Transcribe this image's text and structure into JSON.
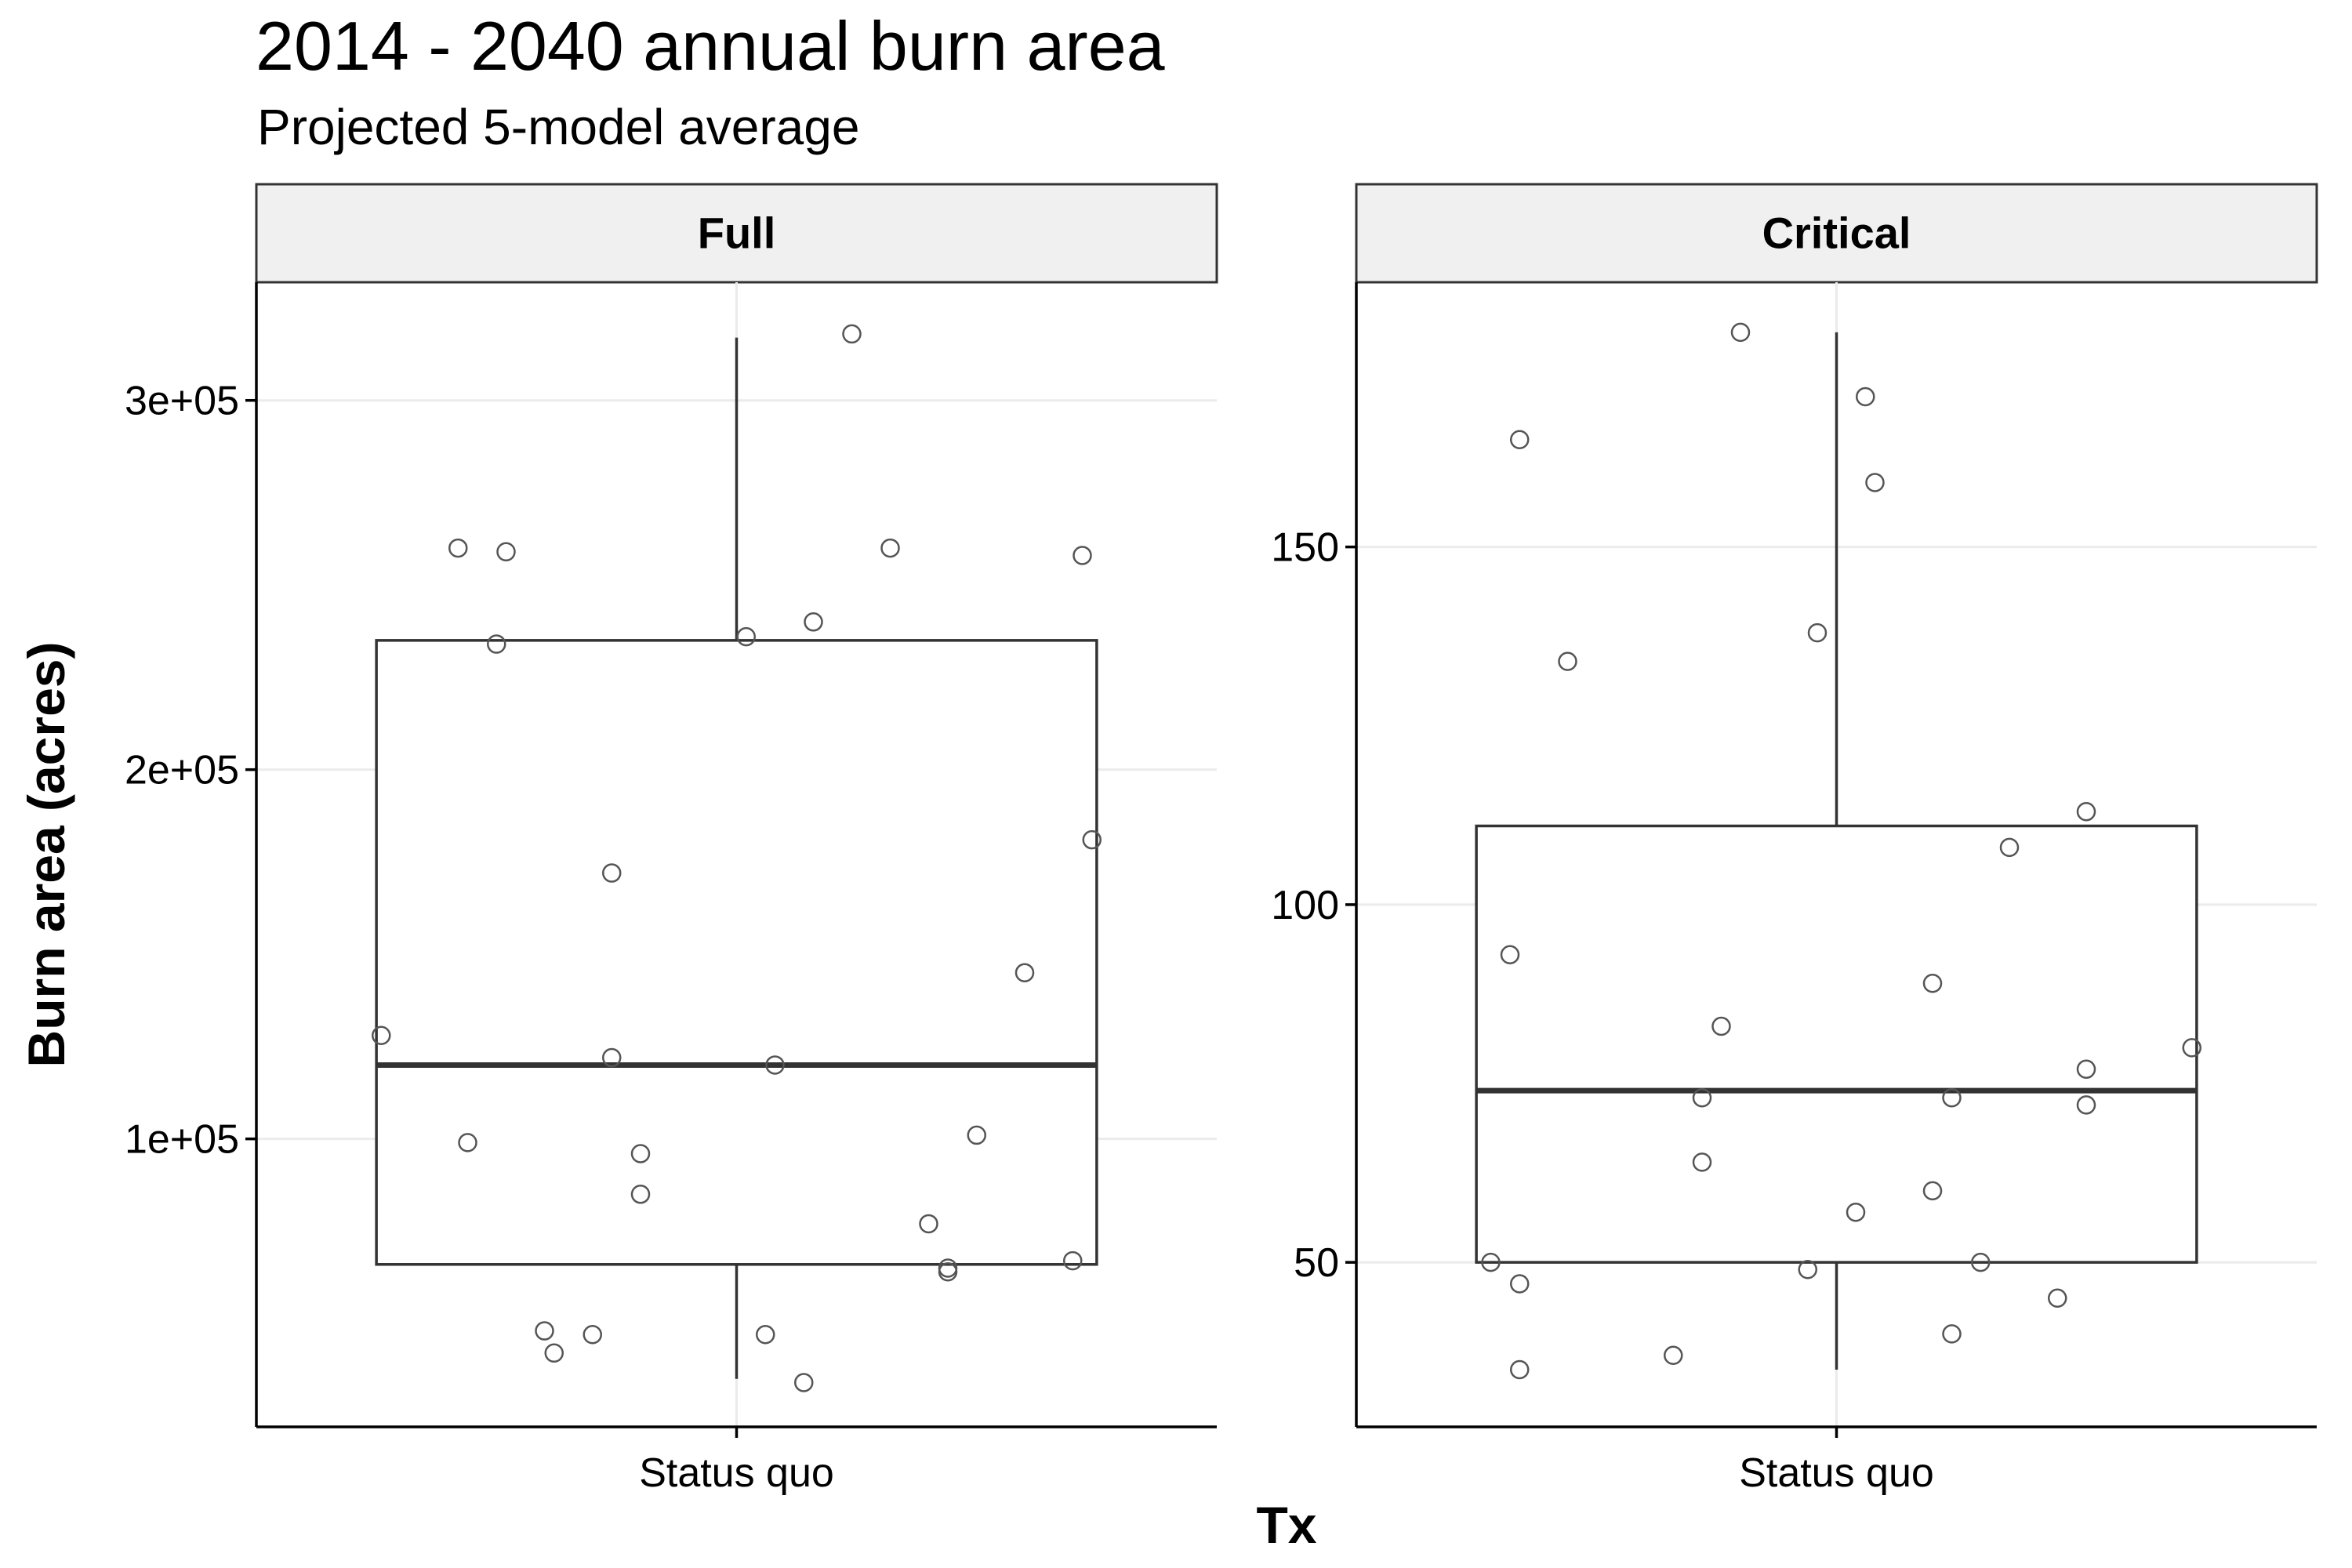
{
  "title": "2014 - 2040 annual burn area",
  "subtitle": "Projected 5-model average",
  "x_axis_title": "Tx",
  "y_axis_title": "Burn area (acres)",
  "colors": {
    "box_stroke": "#333333",
    "points": "#555555",
    "grid": "#ebebeb",
    "strip_fill": "#f0f0f0",
    "axis": "#000000"
  },
  "chart_data": [
    {
      "type": "box",
      "panel": "Full",
      "category": "Status quo",
      "yticks": [
        {
          "value": 100000,
          "label": "1e+05"
        },
        {
          "value": 200000,
          "label": "2e+05"
        },
        {
          "value": 300000,
          "label": "3e+05"
        }
      ],
      "ylim": [
        22000,
        332000
      ],
      "box": {
        "q1": 66000,
        "median": 120000,
        "q3": 235000,
        "whisker_low": 35000,
        "whisker_high": 317000
      },
      "points": [
        {
          "jitter": 0.12,
          "value": 318000
        },
        {
          "jitter": -0.29,
          "value": 260000
        },
        {
          "jitter": -0.24,
          "value": 259000
        },
        {
          "jitter": 0.16,
          "value": 260000
        },
        {
          "jitter": 0.36,
          "value": 258000
        },
        {
          "jitter": 0.08,
          "value": 240000
        },
        {
          "jitter": 0.01,
          "value": 236000
        },
        {
          "jitter": -0.25,
          "value": 234000
        },
        {
          "jitter": 0.37,
          "value": 181000
        },
        {
          "jitter": -0.13,
          "value": 172000
        },
        {
          "jitter": 0.3,
          "value": 145000
        },
        {
          "jitter": -0.37,
          "value": 128000
        },
        {
          "jitter": -0.13,
          "value": 122000
        },
        {
          "jitter": 0.04,
          "value": 120000
        },
        {
          "jitter": -0.28,
          "value": 99000
        },
        {
          "jitter": 0.25,
          "value": 101000
        },
        {
          "jitter": -0.1,
          "value": 96000
        },
        {
          "jitter": -0.1,
          "value": 85000
        },
        {
          "jitter": 0.2,
          "value": 77000
        },
        {
          "jitter": 0.35,
          "value": 67000
        },
        {
          "jitter": 0.22,
          "value": 65000
        },
        {
          "jitter": 0.22,
          "value": 64000
        },
        {
          "jitter": -0.2,
          "value": 48000
        },
        {
          "jitter": -0.15,
          "value": 47000
        },
        {
          "jitter": 0.03,
          "value": 47000
        },
        {
          "jitter": -0.19,
          "value": 42000
        },
        {
          "jitter": 0.07,
          "value": 34000
        }
      ]
    },
    {
      "type": "box",
      "panel": "Critical",
      "category": "Status quo",
      "yticks": [
        {
          "value": 50,
          "label": "50"
        },
        {
          "value": 100,
          "label": "100"
        },
        {
          "value": 150,
          "label": "150"
        }
      ],
      "ylim": [
        27,
        187
      ],
      "box": {
        "q1": 50,
        "median": 74,
        "q3": 111,
        "whisker_low": 35,
        "whisker_high": 180
      },
      "points": [
        {
          "jitter": -0.1,
          "value": 180
        },
        {
          "jitter": 0.03,
          "value": 171
        },
        {
          "jitter": -0.33,
          "value": 165
        },
        {
          "jitter": 0.04,
          "value": 159
        },
        {
          "jitter": -0.02,
          "value": 138
        },
        {
          "jitter": -0.28,
          "value": 134
        },
        {
          "jitter": 0.26,
          "value": 113
        },
        {
          "jitter": 0.18,
          "value": 108
        },
        {
          "jitter": -0.34,
          "value": 93
        },
        {
          "jitter": 0.1,
          "value": 89
        },
        {
          "jitter": -0.12,
          "value": 83
        },
        {
          "jitter": 0.37,
          "value": 80
        },
        {
          "jitter": 0.26,
          "value": 77
        },
        {
          "jitter": -0.14,
          "value": 73
        },
        {
          "jitter": 0.12,
          "value": 73
        },
        {
          "jitter": 0.26,
          "value": 72
        },
        {
          "jitter": -0.14,
          "value": 64
        },
        {
          "jitter": 0.1,
          "value": 60
        },
        {
          "jitter": 0.02,
          "value": 57
        },
        {
          "jitter": -0.36,
          "value": 50
        },
        {
          "jitter": 0.15,
          "value": 50
        },
        {
          "jitter": -0.03,
          "value": 49
        },
        {
          "jitter": -0.33,
          "value": 47
        },
        {
          "jitter": 0.23,
          "value": 45
        },
        {
          "jitter": 0.12,
          "value": 40
        },
        {
          "jitter": -0.17,
          "value": 37
        },
        {
          "jitter": -0.33,
          "value": 35
        }
      ]
    }
  ]
}
